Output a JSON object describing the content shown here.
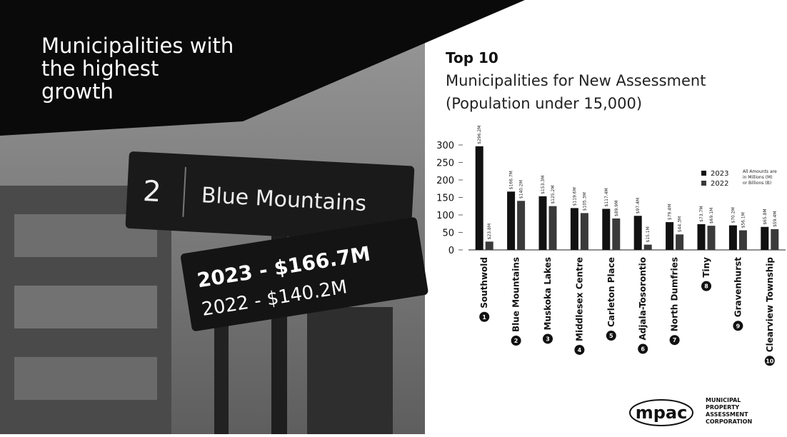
{
  "header": {
    "title": "Municipalities with the highest growth"
  },
  "feature": {
    "rank": "2",
    "name": "Blue Mountains",
    "line_2023": "2023 - $166.7M",
    "line_2022": "2022 - $140.2M"
  },
  "chart_data": {
    "type": "bar",
    "title": "Top 10",
    "subtitle": "Municipalities for New Assessment (Population under 15,000)",
    "note": "All Amounts are in Millions (M) or Billions (B)",
    "categories": [
      "Southwold",
      "Blue Mountains",
      "Muskoka Lakes",
      "Middlesex Centre",
      "Carleton Place",
      "Adjala-Tosorontio",
      "North Dumfries",
      "Tiny",
      "Gravenhurst",
      "Clearview Township"
    ],
    "ranks": [
      "1",
      "2",
      "3",
      "4",
      "5",
      "6",
      "7",
      "8",
      "9",
      "10"
    ],
    "series": [
      {
        "name": "2023",
        "color": "#111111",
        "values": [
          296.2,
          166.7,
          153.3,
          119.6,
          117.4,
          97.4,
          79.4,
          73.7,
          70.2,
          65.8
        ],
        "value_labels": [
          "$296.2M",
          "$166.7M",
          "$153.3M",
          "$119.6M",
          "$117.4M",
          "$97.4M",
          "$79.4M",
          "$73.7M",
          "$70.2M",
          "$65.8M"
        ]
      },
      {
        "name": "2022",
        "color": "#3a3a3a",
        "values": [
          23.8,
          140.2,
          125.2,
          105.3,
          89.9,
          15.1,
          44.3,
          69.1,
          56.1,
          59.4
        ],
        "value_labels": [
          "$23.8M",
          "$140.2M",
          "$125.2M",
          "$105.3M",
          "$89.9M",
          "$15.1M",
          "$44.3M",
          "$69.1M",
          "$56.1M",
          "$59.4M"
        ]
      }
    ],
    "ylim": [
      0,
      300
    ],
    "yticks": [
      0,
      50,
      100,
      150,
      200,
      250,
      300
    ],
    "legend": "upper right"
  },
  "logo": {
    "mark": "mpac",
    "lines": [
      "MUNICIPAL",
      "PROPERTY",
      "ASSESSMENT",
      "CORPORATION"
    ]
  }
}
